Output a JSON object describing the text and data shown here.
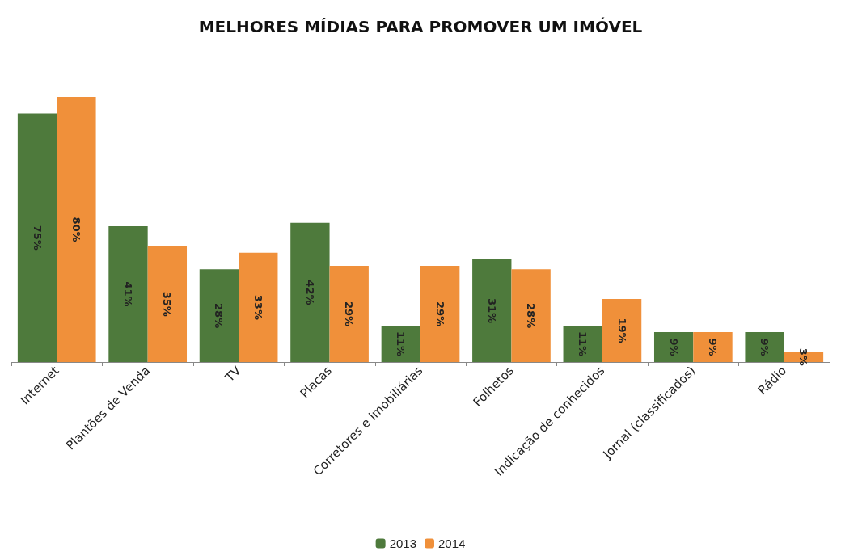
{
  "chart_data": {
    "type": "bar",
    "title": "MELHORES MÍDIAS PARA PROMOVER UM IMÓVEL",
    "categories": [
      "Internet",
      "Plantões de Venda",
      "TV",
      "Placas",
      "Corretores e imobiliárias",
      "Folhetos",
      "Indicação de conhecidos",
      "Jornal (classificados)",
      "Rádio"
    ],
    "series": [
      {
        "name": "2013",
        "color": "#4e7a3c",
        "values": [
          75,
          41,
          28,
          42,
          11,
          31,
          11,
          9,
          9
        ],
        "value_labels": [
          "75%",
          "41%",
          "28%",
          "42%",
          "11%",
          "31%",
          "11%",
          "9%",
          "9%"
        ]
      },
      {
        "name": "2014",
        "color": "#f0903a",
        "values": [
          80,
          35,
          33,
          29,
          29,
          28,
          19,
          9,
          3
        ],
        "value_labels": [
          "80%",
          "35%",
          "33%",
          "29%",
          "29%",
          "28%",
          "19%",
          "9%",
          "3%"
        ]
      }
    ],
    "legend": "bottom"
  }
}
